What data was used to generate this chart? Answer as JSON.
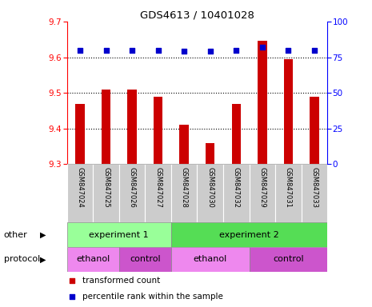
{
  "title": "GDS4613 / 10401028",
  "samples": [
    "GSM847024",
    "GSM847025",
    "GSM847026",
    "GSM847027",
    "GSM847028",
    "GSM847030",
    "GSM847032",
    "GSM847029",
    "GSM847031",
    "GSM847033"
  ],
  "bar_values": [
    9.47,
    9.51,
    9.51,
    9.49,
    9.41,
    9.36,
    9.47,
    9.645,
    9.595,
    9.49
  ],
  "dot_values": [
    80,
    80,
    80,
    80,
    79,
    79,
    80,
    82,
    80,
    80
  ],
  "ylim_left": [
    9.3,
    9.7
  ],
  "ylim_right": [
    0,
    100
  ],
  "yticks_left": [
    9.3,
    9.4,
    9.5,
    9.6,
    9.7
  ],
  "yticks_right": [
    0,
    25,
    50,
    75,
    100
  ],
  "bar_color": "#cc0000",
  "dot_color": "#0000cc",
  "bar_bottom": 9.3,
  "experiment1_label": "experiment 1",
  "experiment2_label": "experiment 2",
  "experiment1_color": "#99ff99",
  "experiment2_color": "#55dd55",
  "ethanol_color": "#ee88ee",
  "control_color": "#cc55cc",
  "ethanol_label": "ethanol",
  "control_label": "control",
  "other_label": "other",
  "protocol_label": "protocol",
  "legend1": "transformed count",
  "legend2": "percentile rank within the sample",
  "sample_bg_color": "#cccccc",
  "grid_levels": [
    9.4,
    9.5,
    9.6
  ]
}
